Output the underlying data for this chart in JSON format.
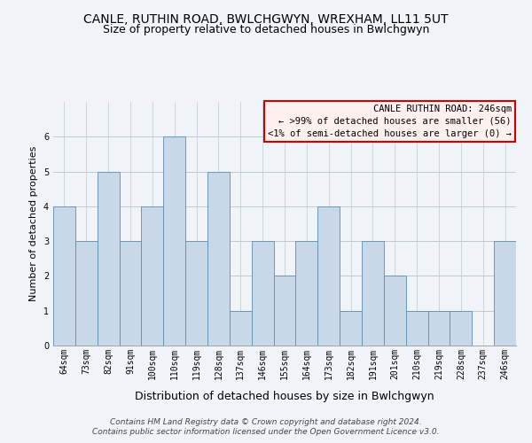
{
  "title1": "CANLE, RUTHIN ROAD, BWLCHGWYN, WREXHAM, LL11 5UT",
  "title2": "Size of property relative to detached houses in Bwlchgwyn",
  "xlabel": "Distribution of detached houses by size in Bwlchgwyn",
  "ylabel": "Number of detached properties",
  "categories": [
    "64sqm",
    "73sqm",
    "82sqm",
    "91sqm",
    "100sqm",
    "110sqm",
    "119sqm",
    "128sqm",
    "137sqm",
    "146sqm",
    "155sqm",
    "164sqm",
    "173sqm",
    "182sqm",
    "191sqm",
    "201sqm",
    "210sqm",
    "219sqm",
    "228sqm",
    "237sqm",
    "246sqm"
  ],
  "values": [
    4,
    3,
    5,
    3,
    4,
    6,
    3,
    5,
    1,
    3,
    2,
    3,
    4,
    1,
    3,
    2,
    1,
    1,
    1,
    0,
    3
  ],
  "bar_color": "#c8d8e8",
  "bar_edge_color": "#5b8db0",
  "ylim": [
    0,
    7
  ],
  "yticks": [
    0,
    1,
    2,
    3,
    4,
    5,
    6
  ],
  "legend_title": "CANLE RUTHIN ROAD: 246sqm",
  "legend_line1": "← >99% of detached houses are smaller (56)",
  "legend_line2": "<1% of semi-detached houses are larger (0) →",
  "legend_box_facecolor": "#fff0f0",
  "legend_box_edge_color": "#cc0000",
  "footer1": "Contains HM Land Registry data © Crown copyright and database right 2024.",
  "footer2": "Contains public sector information licensed under the Open Government Licence v3.0.",
  "background_color": "#f0f4f8",
  "plot_bg_color": "#f0f4f8",
  "grid_color": "#c0c8d0",
  "title1_fontsize": 10,
  "title2_fontsize": 9,
  "xlabel_fontsize": 9,
  "ylabel_fontsize": 8,
  "tick_fontsize": 7,
  "footer_fontsize": 6.5,
  "legend_fontsize": 7.5
}
